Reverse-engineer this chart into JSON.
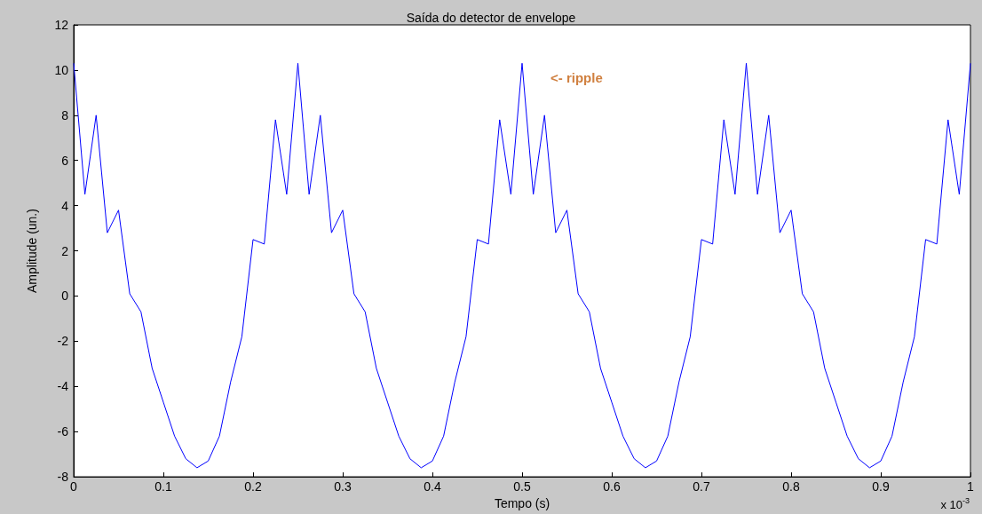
{
  "chart_data": {
    "type": "line",
    "title": "Saída do detector de envelope",
    "xlabel": "Tempo (s)",
    "ylabel": "Amplitude (un.)",
    "annotations": [
      "<- ripple",
      "x 10$^{-3}$"
    ],
    "xlim": [
      0,
      1
    ],
    "xticks": [
      0,
      0.1,
      0.2,
      0.3,
      0.4,
      0.5,
      0.6,
      0.7,
      0.8,
      0.9,
      1
    ],
    "ylim": [
      -8,
      12
    ],
    "yticks": [
      -8,
      -6,
      -4,
      -2,
      0,
      2,
      4,
      6,
      8,
      10,
      12
    ],
    "grid": false,
    "marker": "none",
    "line_style": "solid",
    "series": [
      {
        "color": "#0000ff",
        "x": [
          0,
          0.0125,
          0.025,
          0.0375,
          0.05,
          0.0625,
          0.075,
          0.0875,
          0.1,
          0.1125,
          0.125,
          0.1375,
          0.15,
          0.1625,
          0.175,
          0.1875,
          0.2,
          0.2125,
          0.225,
          0.2375,
          0.25,
          0.2625,
          0.275,
          0.2875,
          0.3,
          0.3125,
          0.325,
          0.3375,
          0.35,
          0.3625,
          0.375,
          0.3875,
          0.4,
          0.4125,
          0.425,
          0.4375,
          0.45,
          0.4625,
          0.475,
          0.4875,
          0.5,
          0.5125,
          0.525,
          0.5375,
          0.55,
          0.5625,
          0.575,
          0.5875,
          0.6,
          0.6125,
          0.625,
          0.6375,
          0.65,
          0.6625,
          0.675,
          0.6875,
          0.7,
          0.7125,
          0.725,
          0.7375,
          0.75,
          0.7625,
          0.775,
          0.7875,
          0.8,
          0.8125,
          0.825,
          0.8375,
          0.85,
          0.8625,
          0.875,
          0.8875,
          0.9,
          0.9125,
          0.925,
          0.9375,
          0.95,
          0.9625,
          0.975,
          0.9875,
          1
        ],
        "values": [
          10.3,
          4.5,
          8.0,
          2.8,
          3.8,
          0.1,
          -0.7,
          -3.2,
          -4.7,
          -6.2,
          -7.2,
          -7.6,
          -7.3,
          -6.2,
          -3.8,
          -1.8,
          2.5,
          2.3,
          7.8,
          4.5,
          10.3,
          4.5,
          8.0,
          2.8,
          3.8,
          0.1,
          -0.7,
          -3.2,
          -4.7,
          -6.2,
          -7.2,
          -7.6,
          -7.3,
          -6.2,
          -3.8,
          -1.8,
          2.5,
          2.3,
          7.8,
          4.5,
          10.3,
          4.5,
          8.0,
          2.8,
          3.8,
          0.1,
          -0.7,
          -3.2,
          -4.7,
          -6.2,
          -7.2,
          -7.6,
          -7.3,
          -6.2,
          -3.8,
          -1.8,
          2.5,
          2.3,
          7.8,
          4.5,
          10.3,
          4.5,
          8.0,
          2.8,
          3.8,
          0.1,
          -0.7,
          -3.2,
          -4.7,
          -6.2,
          -7.2,
          -7.6,
          -7.3,
          -6.2,
          -3.8,
          -1.8,
          2.5,
          2.3,
          7.8,
          4.5,
          10.3
        ]
      }
    ]
  }
}
